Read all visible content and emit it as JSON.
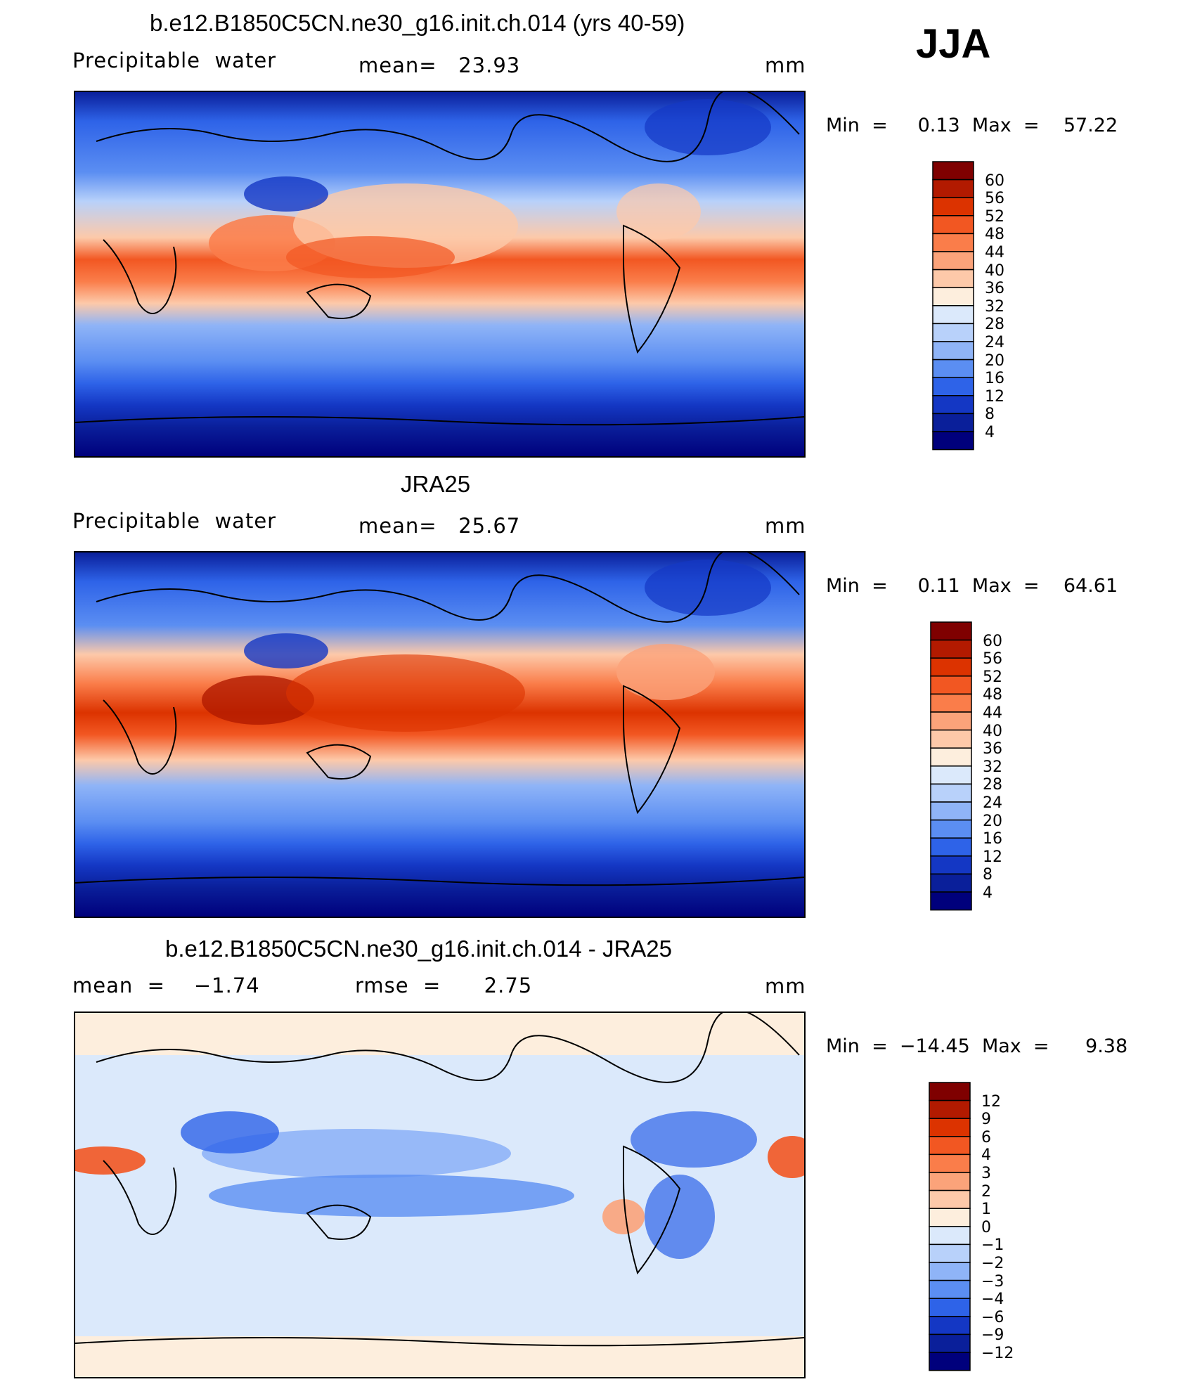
{
  "season": "JJA",
  "panels": [
    {
      "id": "model",
      "title": "b.e12.B1850C5CN.ne30_g16.init.ch.014 (yrs 40-59)",
      "left_label": "Precipitable  water",
      "center_label": "mean=   23.93",
      "units": "mm",
      "minmax": "Min  =     0.13  Max  =    57.22",
      "colorbar": {
        "levels": [
          "60",
          "56",
          "52",
          "48",
          "44",
          "40",
          "36",
          "32",
          "28",
          "24",
          "20",
          "16",
          "12",
          "8",
          "4"
        ],
        "colors": [
          "#7f0000",
          "#b21a00",
          "#dc3300",
          "#f25722",
          "#fa7d4a",
          "#fba37a",
          "#fdc9a9",
          "#fdeedd",
          "#dbe9fb",
          "#b8d1fa",
          "#8fb4f7",
          "#5b8ef2",
          "#2e63e8",
          "#1437c4",
          "#0a1f9a",
          "#00007c"
        ]
      }
    },
    {
      "id": "obs",
      "title": "JRA25",
      "left_label": "Precipitable  water",
      "center_label": "mean=   25.67",
      "units": "mm",
      "minmax": "Min  =     0.11  Max  =    64.61",
      "colorbar": {
        "levels": [
          "60",
          "56",
          "52",
          "48",
          "44",
          "40",
          "36",
          "32",
          "28",
          "24",
          "20",
          "16",
          "12",
          "8",
          "4"
        ],
        "colors": [
          "#7f0000",
          "#b21a00",
          "#dc3300",
          "#f25722",
          "#fa7d4a",
          "#fba37a",
          "#fdc9a9",
          "#fdeedd",
          "#dbe9fb",
          "#b8d1fa",
          "#8fb4f7",
          "#5b8ef2",
          "#2e63e8",
          "#1437c4",
          "#0a1f9a",
          "#00007c"
        ]
      }
    },
    {
      "id": "diff",
      "title": "b.e12.B1850C5CN.ne30_g16.init.ch.014 - JRA25",
      "left_label": "mean  =    −1.74",
      "center_label": "rmse  =      2.75",
      "units": "mm",
      "minmax": "Min  =  −14.45  Max  =      9.38",
      "colorbar": {
        "levels": [
          "12",
          "9",
          "6",
          "4",
          "3",
          "2",
          "1",
          "0",
          "−1",
          "−2",
          "−3",
          "−4",
          "−6",
          "−9",
          "−12"
        ],
        "colors": [
          "#7f0000",
          "#b21a00",
          "#dc3300",
          "#f25722",
          "#fa7d4a",
          "#fba37a",
          "#fdc9a9",
          "#fdeedd",
          "#dbe9fb",
          "#b8d1fa",
          "#8fb4f7",
          "#5b8ef2",
          "#2e63e8",
          "#1437c4",
          "#0a1f9a",
          "#00007c"
        ]
      }
    }
  ]
}
